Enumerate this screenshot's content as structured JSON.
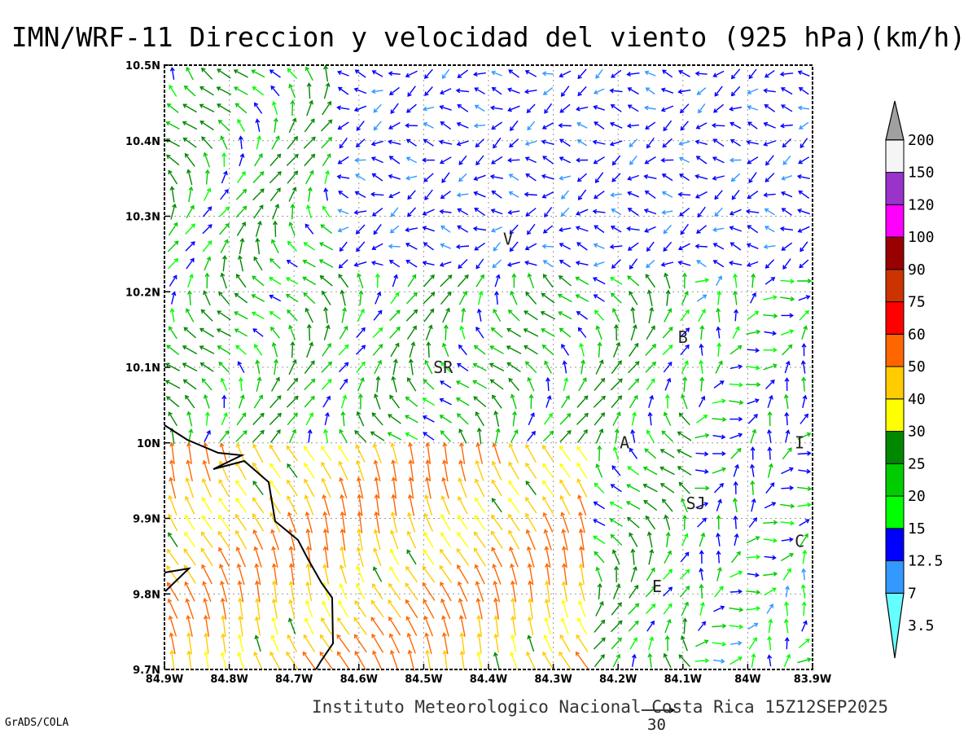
{
  "title": "IMN/WRF-11 Direccion y velocidad del viento (925 hPa)(km/h)",
  "footer": "Instituto Meteorologico Nacional Costa Rica 15Z12SEP2025",
  "credit": "GrADS/COLA",
  "reference_vector_label": "30",
  "map": {
    "lon_range": [
      -84.9,
      -83.9
    ],
    "lat_range": [
      9.7,
      10.5
    ],
    "grid": true,
    "x_ticks": [
      "84.9W",
      "84.8W",
      "84.7W",
      "84.6W",
      "84.5W",
      "84.4W",
      "84.3W",
      "84.2W",
      "84.1W",
      "84W",
      "83.9W"
    ],
    "y_ticks": [
      "9.7N",
      "9.8N",
      "9.9N",
      "10N",
      "10.1N",
      "10.2N",
      "10.3N",
      "10.4N",
      "10.5N"
    ]
  },
  "cities": [
    {
      "label": "V",
      "lon": -84.37,
      "lat": 10.27
    },
    {
      "label": "SR",
      "lon": -84.47,
      "lat": 10.1
    },
    {
      "label": "B",
      "lon": -84.1,
      "lat": 10.14
    },
    {
      "label": "A",
      "lon": -84.19,
      "lat": 10.0
    },
    {
      "label": "I",
      "lon": -83.92,
      "lat": 10.0
    },
    {
      "label": "SJ",
      "lon": -84.08,
      "lat": 9.92
    },
    {
      "label": "C",
      "lon": -83.92,
      "lat": 9.87
    },
    {
      "label": "E",
      "lon": -84.14,
      "lat": 9.81
    }
  ],
  "colorbar": {
    "labels": [
      "3.5",
      "7",
      "12.5",
      "15",
      "20",
      "25",
      "30",
      "40",
      "50",
      "60",
      "75",
      "90",
      "100",
      "120",
      "150",
      "200"
    ],
    "colors": [
      "#66ffff",
      "#3399ff",
      "#0000ff",
      "#00ff00",
      "#00cc00",
      "#008800",
      "#ffff00",
      "#ffcc00",
      "#ff6600",
      "#ff0000",
      "#cc3300",
      "#990000",
      "#ff00ff",
      "#9933cc",
      "#f5f5f5",
      "#a0a0a0"
    ]
  }
}
